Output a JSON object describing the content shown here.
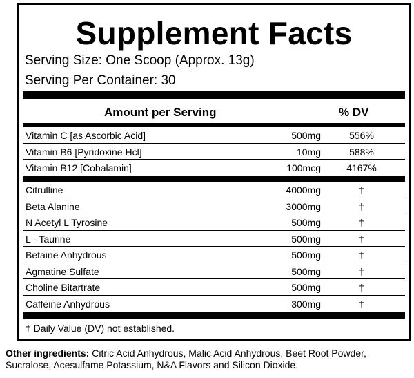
{
  "title": "Supplement Facts",
  "serving_size": "Serving Size:  One Scoop (Approx. 13g)",
  "servings_per_container": "Serving Per Container: 30",
  "header": {
    "amount": "Amount per Serving",
    "dv": "% DV"
  },
  "vitamins": [
    [
      "Vitamin C [as Ascorbic Acid]",
      "500mg",
      "556%"
    ],
    [
      "Vitamin B6 [Pyridoxine Hcl]",
      "10mg",
      "588%"
    ],
    [
      "Vitamin B12 [Cobalamin]",
      "100mcg",
      "4167%"
    ]
  ],
  "blend": [
    [
      "Citrulline",
      "4000mg",
      "†"
    ],
    [
      "Beta Alanine",
      "3000mg",
      "†"
    ],
    [
      "N Acetyl L Tyrosine",
      "500mg",
      "†"
    ],
    [
      "L - Taurine",
      "500mg",
      "†"
    ],
    [
      "Betaine Anhydrous",
      "500mg",
      "†"
    ],
    [
      "Agmatine Sulfate",
      "500mg",
      "†"
    ],
    [
      "Choline Bitartrate",
      "500mg",
      "†"
    ],
    [
      "Caffeine Anhydrous",
      "300mg",
      "†"
    ]
  ],
  "footnote": "† Daily Value (DV) not established.",
  "other_ingredients": {
    "label": "Other ingredients:",
    "text": "Citric Acid Anhydrous, Malic Acid Anhydrous, Beet Root Powder, Sucralose, Acesulfame Potassium, N&A Flavors  and Silicon Dioxide."
  }
}
